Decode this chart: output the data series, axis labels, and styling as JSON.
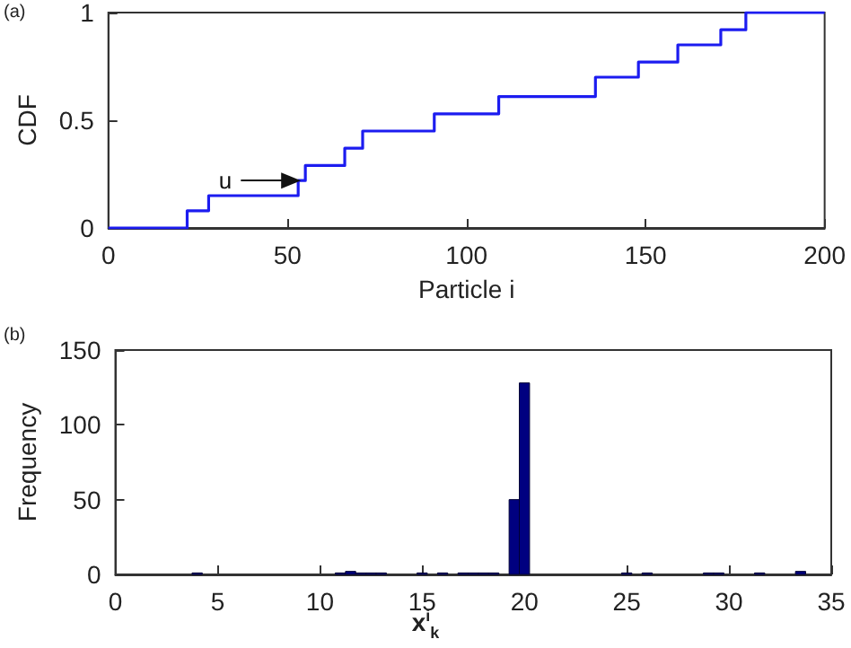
{
  "chart_data": [
    {
      "type": "step",
      "xlabel": "Particle i",
      "ylabel": "CDF",
      "annotations": [
        "(a)",
        {
          "text": "u",
          "x": 53,
          "y": 0.22
        }
      ],
      "x": [
        0,
        22,
        28,
        53,
        55,
        66,
        71,
        91,
        109,
        136,
        148,
        159,
        171,
        178,
        200
      ],
      "series": [
        {
          "color": "#1c1cf0",
          "values": [
            0,
            0.08,
            0.15,
            0.22,
            0.29,
            0.37,
            0.45,
            0.53,
            0.61,
            0.7,
            0.77,
            0.85,
            0.92,
            1,
            1
          ]
        }
      ],
      "xlim": [
        0,
        200
      ],
      "xticks": [
        0,
        50,
        100,
        150,
        200
      ],
      "ylim": [
        0,
        1
      ],
      "yticks": [
        0,
        0.5,
        1
      ],
      "marker": "none"
    },
    {
      "type": "histogram",
      "xlabel": "x$^{i}$$_{k}$",
      "ylabel": "Frequency",
      "annotations": [
        "(b)"
      ],
      "bins": [
        3.75,
        4.25,
        4.75,
        5.25,
        5.75,
        6.25,
        6.75,
        7.25,
        7.75,
        8.25,
        8.75,
        9.25,
        9.75,
        10.25,
        10.75,
        11.25,
        11.75,
        12.25,
        12.75,
        13.25,
        13.75,
        14.25,
        14.75,
        15.25,
        15.75,
        16.25,
        16.75,
        17.25,
        17.75,
        18.25,
        18.75,
        19.25,
        19.75,
        20.25,
        20.75,
        21.25,
        21.75,
        22.25,
        22.75,
        23.25,
        23.75,
        24.25,
        24.75,
        25.25,
        25.75,
        26.25,
        26.75,
        27.25,
        27.75,
        28.25,
        28.75,
        29.25,
        29.75,
        30.25,
        30.75,
        31.25,
        31.75,
        32.25,
        32.75,
        33.25,
        33.75
      ],
      "values": [
        1,
        0,
        0,
        0,
        0,
        0,
        0,
        0,
        0,
        0,
        0,
        0,
        0,
        0,
        1,
        2,
        1,
        1,
        1,
        0,
        0,
        0,
        1,
        0,
        1,
        0,
        1,
        1,
        1,
        1,
        0,
        50,
        128,
        0,
        0,
        0,
        0,
        0,
        0,
        0,
        0,
        0,
        1,
        0,
        1,
        0,
        0,
        0,
        0,
        0,
        1,
        1,
        0,
        0,
        0,
        1,
        0,
        0,
        0,
        2
      ],
      "color": "#000080",
      "xlim": [
        0,
        35
      ],
      "xticks": [
        0,
        5,
        10,
        15,
        20,
        25,
        30,
        35
      ],
      "ylim": [
        0,
        150
      ],
      "yticks": [
        0,
        50,
        100,
        150
      ]
    }
  ]
}
